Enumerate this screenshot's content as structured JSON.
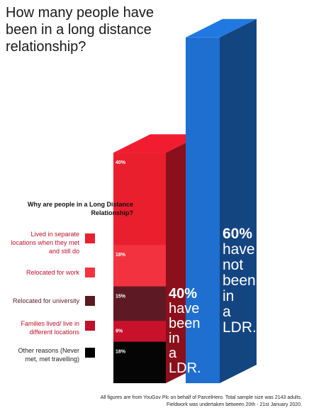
{
  "title": "How many people have been in a long distance relationship?",
  "legend": {
    "title": "Why are people in a Long Distance Relationship?",
    "items": [
      {
        "label": "Lived in separate locations when they met and still do",
        "color": "#e8202f"
      },
      {
        "label": "Relocated for work",
        "color": "#f5333f"
      },
      {
        "label": "Relocated for university",
        "color": "#5a1a22"
      },
      {
        "label": "Families lived/ live in different locations",
        "color": "#c0102a"
      },
      {
        "label": "Other reasons (Never met, met travelling)",
        "color": "#000000"
      }
    ]
  },
  "chart_data": {
    "type": "bar",
    "bars": [
      {
        "label": "40% have been in a LDR.",
        "value": 40,
        "color": "#e01a2c"
      },
      {
        "label": "60% have not been in a LDR.",
        "value": 60,
        "color": "#1e6fd0"
      }
    ],
    "segments": [
      {
        "label": "Lived in separate locations when they met and still do",
        "value": 40,
        "value_label": "40%"
      },
      {
        "label": "Relocated for work",
        "value": 18,
        "value_label": "18%"
      },
      {
        "label": "Relocated for university",
        "value": 15,
        "value_label": "15%"
      },
      {
        "label": "Families lived/ live in different locations",
        "value": 9,
        "value_label": "9%"
      },
      {
        "label": "Other reasons (Never met, met travelling)",
        "value": 18,
        "value_label": "18%"
      }
    ]
  },
  "footnote": [
    "All figures are from YouGov Plc on behalf of ParcelHero. Total sample size was 2143 adults.",
    "Fieldwork was undertaken between 20th - 21st January 2020."
  ]
}
